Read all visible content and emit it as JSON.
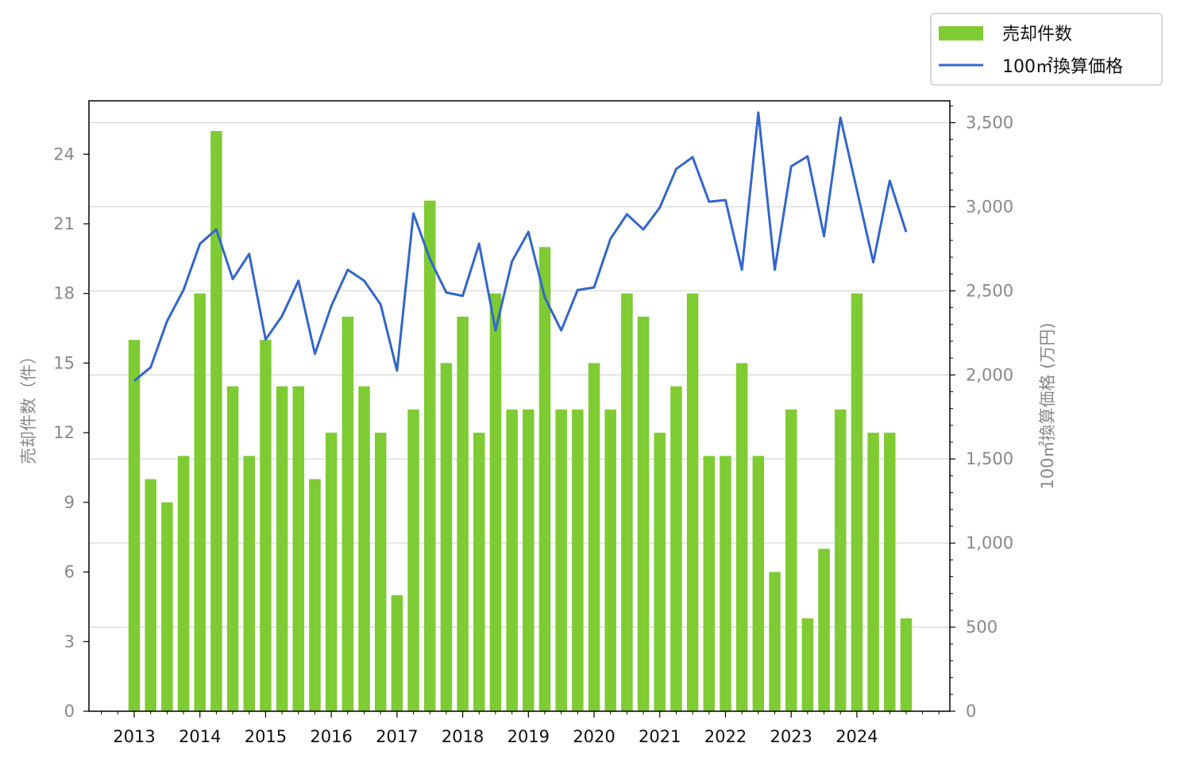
{
  "chart_data": {
    "type": "bar",
    "x_tick_labels": [
      "2013",
      "2014",
      "2015",
      "2016",
      "2017",
      "2018",
      "2019",
      "2020",
      "2021",
      "2022",
      "2023",
      "2024"
    ],
    "y_left_label": "売却件数（件）",
    "y_right_label": "100㎡換算価格 (万円)",
    "y_left_ticks": [
      "0",
      "3",
      "6",
      "9",
      "12",
      "15",
      "18",
      "21",
      "24"
    ],
    "y_right_ticks": [
      "0",
      "500",
      "1,000",
      "1,500",
      "2,000",
      "2,500",
      "3,000",
      "3,500"
    ],
    "y_left_lim": [
      0,
      26.3
    ],
    "y_right_lim": [
      0,
      3630
    ],
    "grid": "horizontal, right axis",
    "legend_position": "top-right",
    "colors": {
      "bars": "#7ecb33",
      "line": "#3366cc",
      "grid": "#d9d9d9"
    },
    "series": [
      {
        "name": "売却件数",
        "type": "bar",
        "axis": "left",
        "values": [
          16,
          10,
          9,
          11,
          18,
          25,
          14,
          11,
          16,
          14,
          14,
          10,
          12,
          17,
          14,
          12,
          5,
          13,
          22,
          15,
          17,
          12,
          18,
          13,
          13,
          20,
          13,
          13,
          15,
          13,
          18,
          17,
          12,
          14,
          18,
          11,
          11,
          15,
          11,
          6,
          13,
          4,
          7,
          13,
          18,
          12,
          12,
          4
        ]
      },
      {
        "name": "100㎡換算価格",
        "type": "line",
        "axis": "right",
        "values": [
          1965,
          2045,
          2320,
          2505,
          2780,
          2865,
          2570,
          2720,
          2210,
          2350,
          2560,
          2125,
          2410,
          2625,
          2560,
          2420,
          2025,
          2960,
          2690,
          2490,
          2470,
          2780,
          2265,
          2675,
          2850,
          2460,
          2265,
          2505,
          2520,
          2810,
          2955,
          2865,
          2995,
          3225,
          3295,
          3030,
          3040,
          2625,
          3560,
          2625,
          3240,
          3300,
          2825,
          3530,
          3100,
          2670,
          3155,
          2850
        ]
      }
    ]
  }
}
